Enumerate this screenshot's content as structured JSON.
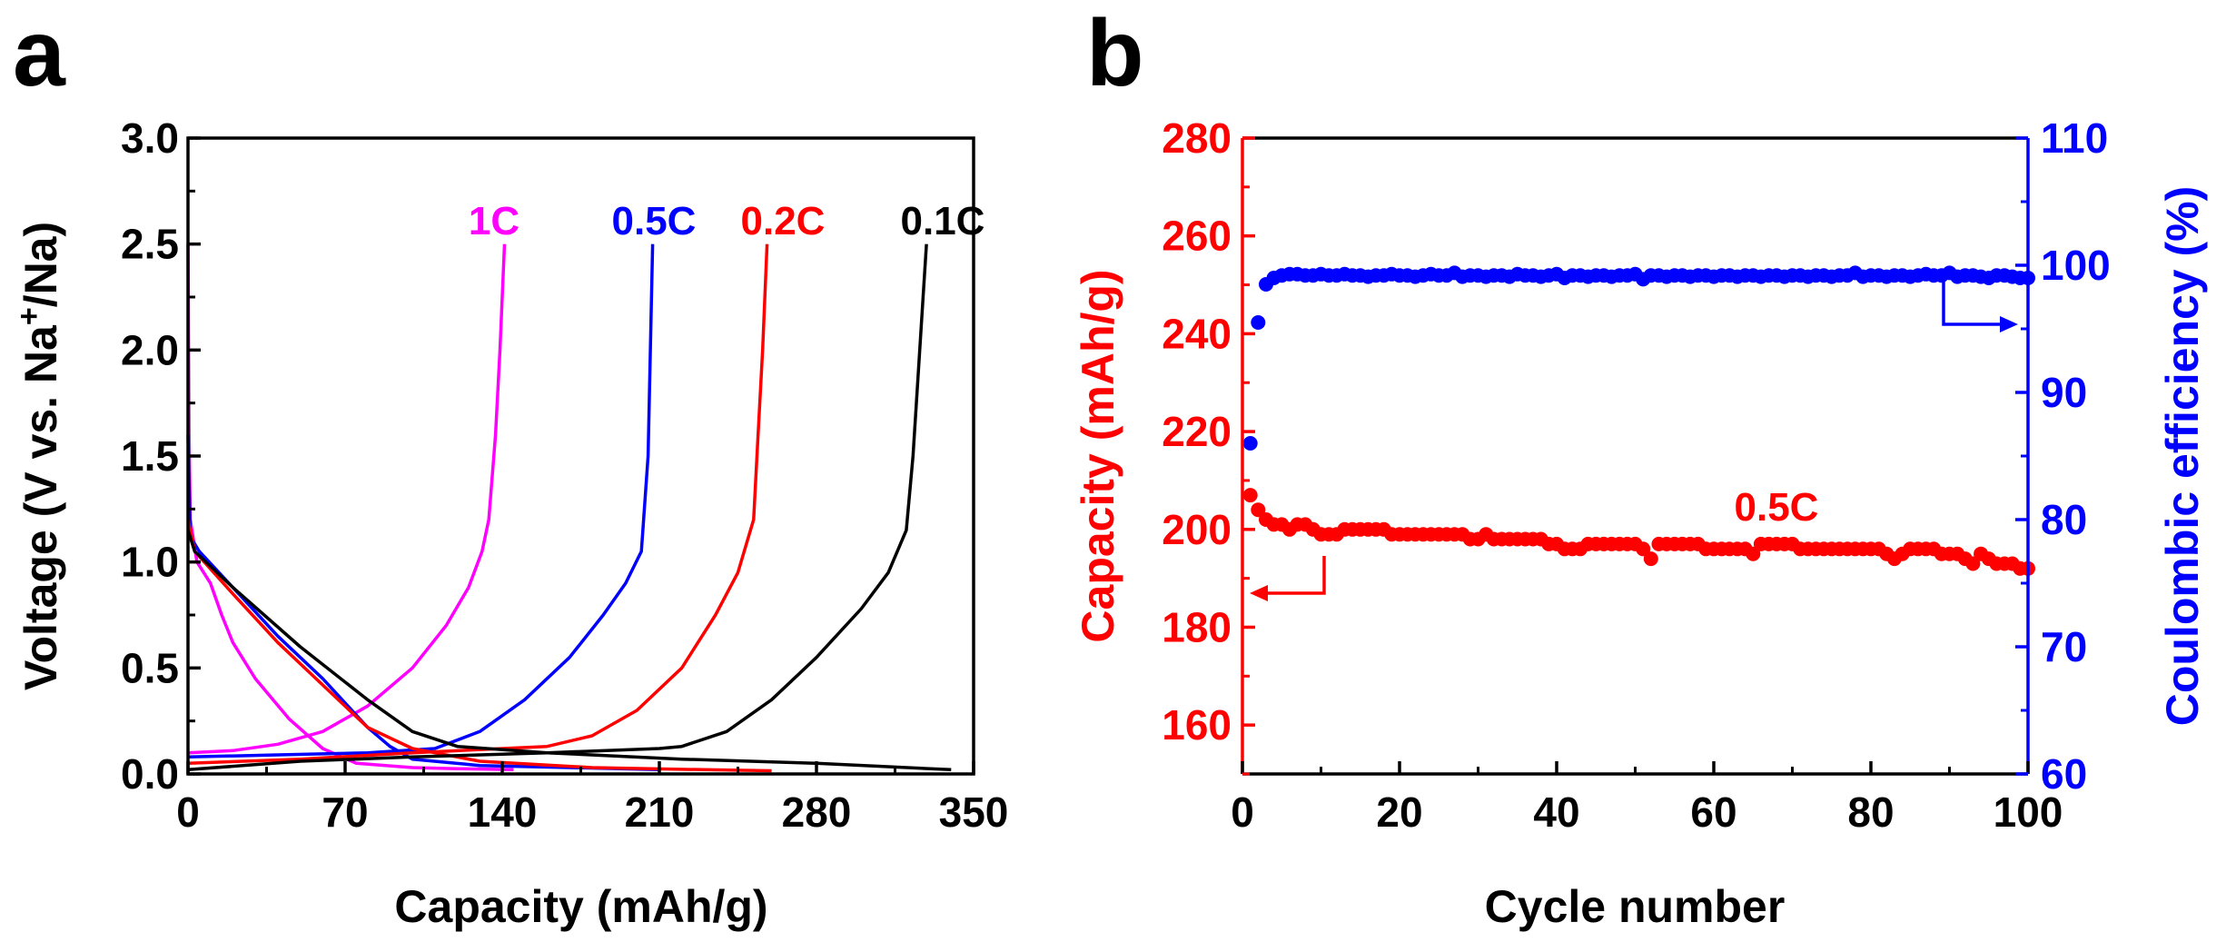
{
  "chart_data": [
    {
      "panel_label": "a",
      "type": "line",
      "xlabel": "Capacity (mAh/g)",
      "ylabel_main": "Voltage (V vs. Na",
      "ylabel_sup": "+",
      "ylabel_end": "/Na)",
      "xlim": [
        0,
        350
      ],
      "ylim": [
        0,
        3.0
      ],
      "x_ticks": [
        "0",
        "70",
        "140",
        "210",
        "280",
        "350"
      ],
      "y_ticks": [
        "0.0",
        "0.5",
        "1.0",
        "1.5",
        "2.0",
        "2.5",
        "3.0"
      ],
      "series": [
        {
          "name": "1C",
          "color": "#ff00ff",
          "discharge": [
            [
              0,
              2.5
            ],
            [
              0.5,
              1.6
            ],
            [
              1,
              1.2
            ],
            [
              4,
              1.0
            ],
            [
              10,
              0.9
            ],
            [
              15,
              0.75
            ],
            [
              20,
              0.62
            ],
            [
              30,
              0.45
            ],
            [
              45,
              0.26
            ],
            [
              60,
              0.12
            ],
            [
              75,
              0.05
            ],
            [
              100,
              0.03
            ],
            [
              120,
              0.025
            ],
            [
              145,
              0.02
            ]
          ],
          "charge": [
            [
              0,
              0.1
            ],
            [
              20,
              0.11
            ],
            [
              40,
              0.14
            ],
            [
              60,
              0.2
            ],
            [
              80,
              0.32
            ],
            [
              100,
              0.5
            ],
            [
              115,
              0.7
            ],
            [
              125,
              0.88
            ],
            [
              131,
              1.05
            ],
            [
              134,
              1.2
            ],
            [
              137,
              1.6
            ],
            [
              139,
              2.0
            ],
            [
              141,
              2.5
            ]
          ]
        },
        {
          "name": "0.5C",
          "color": "#0000ff",
          "discharge": [
            [
              0,
              1.6
            ],
            [
              1,
              1.12
            ],
            [
              5,
              1.05
            ],
            [
              20,
              0.88
            ],
            [
              40,
              0.65
            ],
            [
              60,
              0.45
            ],
            [
              80,
              0.22
            ],
            [
              90,
              0.13
            ],
            [
              100,
              0.07
            ],
            [
              130,
              0.04
            ],
            [
              170,
              0.03
            ],
            [
              210,
              0.02
            ]
          ],
          "charge": [
            [
              0,
              0.08
            ],
            [
              40,
              0.09
            ],
            [
              80,
              0.1
            ],
            [
              110,
              0.12
            ],
            [
              130,
              0.2
            ],
            [
              150,
              0.35
            ],
            [
              170,
              0.55
            ],
            [
              185,
              0.75
            ],
            [
              195,
              0.9
            ],
            [
              202,
              1.05
            ],
            [
              205,
              1.5
            ],
            [
              206,
              2.0
            ],
            [
              207,
              2.5
            ]
          ]
        },
        {
          "name": "0.2C",
          "color": "#ff0000",
          "discharge": [
            [
              0,
              1.2
            ],
            [
              3,
              1.05
            ],
            [
              20,
              0.85
            ],
            [
              40,
              0.62
            ],
            [
              60,
              0.42
            ],
            [
              80,
              0.22
            ],
            [
              100,
              0.12
            ],
            [
              130,
              0.06
            ],
            [
              180,
              0.03
            ],
            [
              230,
              0.02
            ],
            [
              260,
              0.015
            ]
          ],
          "charge": [
            [
              0,
              0.05
            ],
            [
              50,
              0.07
            ],
            [
              100,
              0.1
            ],
            [
              160,
              0.13
            ],
            [
              180,
              0.18
            ],
            [
              200,
              0.3
            ],
            [
              220,
              0.5
            ],
            [
              235,
              0.75
            ],
            [
              245,
              0.95
            ],
            [
              252,
              1.2
            ],
            [
              254,
              1.6
            ],
            [
              256,
              2.0
            ],
            [
              258,
              2.5
            ]
          ]
        },
        {
          "name": "0.1C",
          "color": "#000000",
          "discharge": [
            [
              0,
              1.15
            ],
            [
              3,
              1.05
            ],
            [
              20,
              0.88
            ],
            [
              50,
              0.6
            ],
            [
              80,
              0.35
            ],
            [
              100,
              0.2
            ],
            [
              120,
              0.13
            ],
            [
              160,
              0.1
            ],
            [
              220,
              0.07
            ],
            [
              280,
              0.05
            ],
            [
              340,
              0.02
            ]
          ],
          "charge": [
            [
              0,
              0.02
            ],
            [
              50,
              0.06
            ],
            [
              100,
              0.08
            ],
            [
              160,
              0.1
            ],
            [
              210,
              0.12
            ],
            [
              220,
              0.13
            ],
            [
              240,
              0.2
            ],
            [
              260,
              0.35
            ],
            [
              280,
              0.55
            ],
            [
              300,
              0.78
            ],
            [
              312,
              0.95
            ],
            [
              320,
              1.15
            ],
            [
              323,
              1.5
            ],
            [
              326,
              2.0
            ],
            [
              329,
              2.5
            ]
          ]
        }
      ]
    },
    {
      "panel_label": "b",
      "type": "scatter",
      "xlabel": "Cycle number",
      "ylabel_left": "Capacity (mAh/g)",
      "ylabel_right": "Coulombic efficiency (%)",
      "xlim": [
        0,
        100
      ],
      "ylim_left": [
        150,
        280
      ],
      "ylim_right": [
        60,
        110
      ],
      "x_ticks": [
        "0",
        "20",
        "40",
        "60",
        "80",
        "100"
      ],
      "y_ticks_left": [
        "160",
        "180",
        "200",
        "220",
        "240",
        "260",
        "280"
      ],
      "y_ticks_right": [
        "60",
        "70",
        "80",
        "90",
        "100",
        "110"
      ],
      "capacity_label": "0.5C",
      "capacity_color": "#ff0000",
      "efficiency_color": "#0000ff",
      "capacity": [
        207,
        204,
        202,
        201,
        201,
        200,
        201,
        201,
        200,
        199,
        199,
        199,
        200,
        200,
        200,
        200,
        200,
        200,
        199,
        199,
        199,
        199,
        199,
        199,
        199,
        199,
        199,
        199,
        198,
        198,
        199,
        198,
        198,
        198,
        198,
        198,
        198,
        198,
        197,
        197,
        196,
        196,
        196,
        197,
        197,
        197,
        197,
        197,
        197,
        197,
        196,
        194,
        197,
        197,
        197,
        197,
        197,
        197,
        196,
        196,
        196,
        196,
        196,
        196,
        195,
        197,
        197,
        197,
        197,
        197,
        196,
        196,
        196,
        196,
        196,
        196,
        196,
        196,
        196,
        196,
        196,
        195,
        194,
        195,
        196,
        196,
        196,
        196,
        195,
        195,
        195,
        194,
        193,
        195,
        194,
        193,
        193,
        193,
        192,
        192
      ],
      "efficiency": [
        86,
        95.5,
        98.5,
        99,
        99.2,
        99.3,
        99.3,
        99.2,
        99.2,
        99.3,
        99.2,
        99.2,
        99.3,
        99.2,
        99.2,
        99.1,
        99.2,
        99.2,
        99.3,
        99.2,
        99.2,
        99.1,
        99.2,
        99.3,
        99.2,
        99.2,
        99.4,
        99.1,
        99.2,
        99.2,
        99.1,
        99.2,
        99.2,
        99.1,
        99.3,
        99.2,
        99.2,
        99.1,
        99.2,
        99.3,
        99.0,
        99.2,
        99.2,
        99.1,
        99.2,
        99.2,
        99.1,
        99.2,
        99.2,
        99.3,
        98.9,
        99.2,
        99.2,
        99.1,
        99.2,
        99.2,
        99.1,
        99.2,
        99.2,
        99.1,
        99.2,
        99.2,
        99.1,
        99.2,
        99.2,
        99.1,
        99.2,
        99.2,
        99.1,
        99.2,
        99.2,
        99.1,
        99.2,
        99.2,
        99.1,
        99.2,
        99.2,
        99.4,
        99.1,
        99.2,
        99.2,
        99.1,
        99.2,
        99.2,
        99.1,
        99.2,
        99.3,
        99.2,
        99.2,
        99.4,
        99.1,
        99.2,
        99.2,
        99.1,
        99.0,
        99.2,
        99.2,
        99.1,
        99.0,
        99.0
      ]
    }
  ]
}
